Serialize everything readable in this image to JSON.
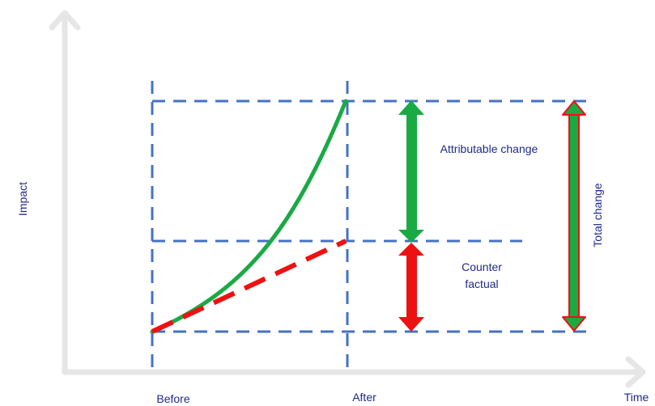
{
  "labels": {
    "y_axis": "Impact",
    "x_axis": "Time",
    "before": "Before",
    "after": "After",
    "attributable": "Attributable change",
    "counterfactual_line1": "Counter",
    "counterfactual_line2": "factual",
    "total": "Total change"
  },
  "colors": {
    "axis": "#e6e6e6",
    "dashed_guides": "#4472c4",
    "actual_curve": "#1aaa44",
    "counterfactual_line": "#ee1111",
    "attributable_arrow": "#1aaa44",
    "counterfactual_arrow": "#ee1111",
    "text": "#1f2a8a"
  }
}
